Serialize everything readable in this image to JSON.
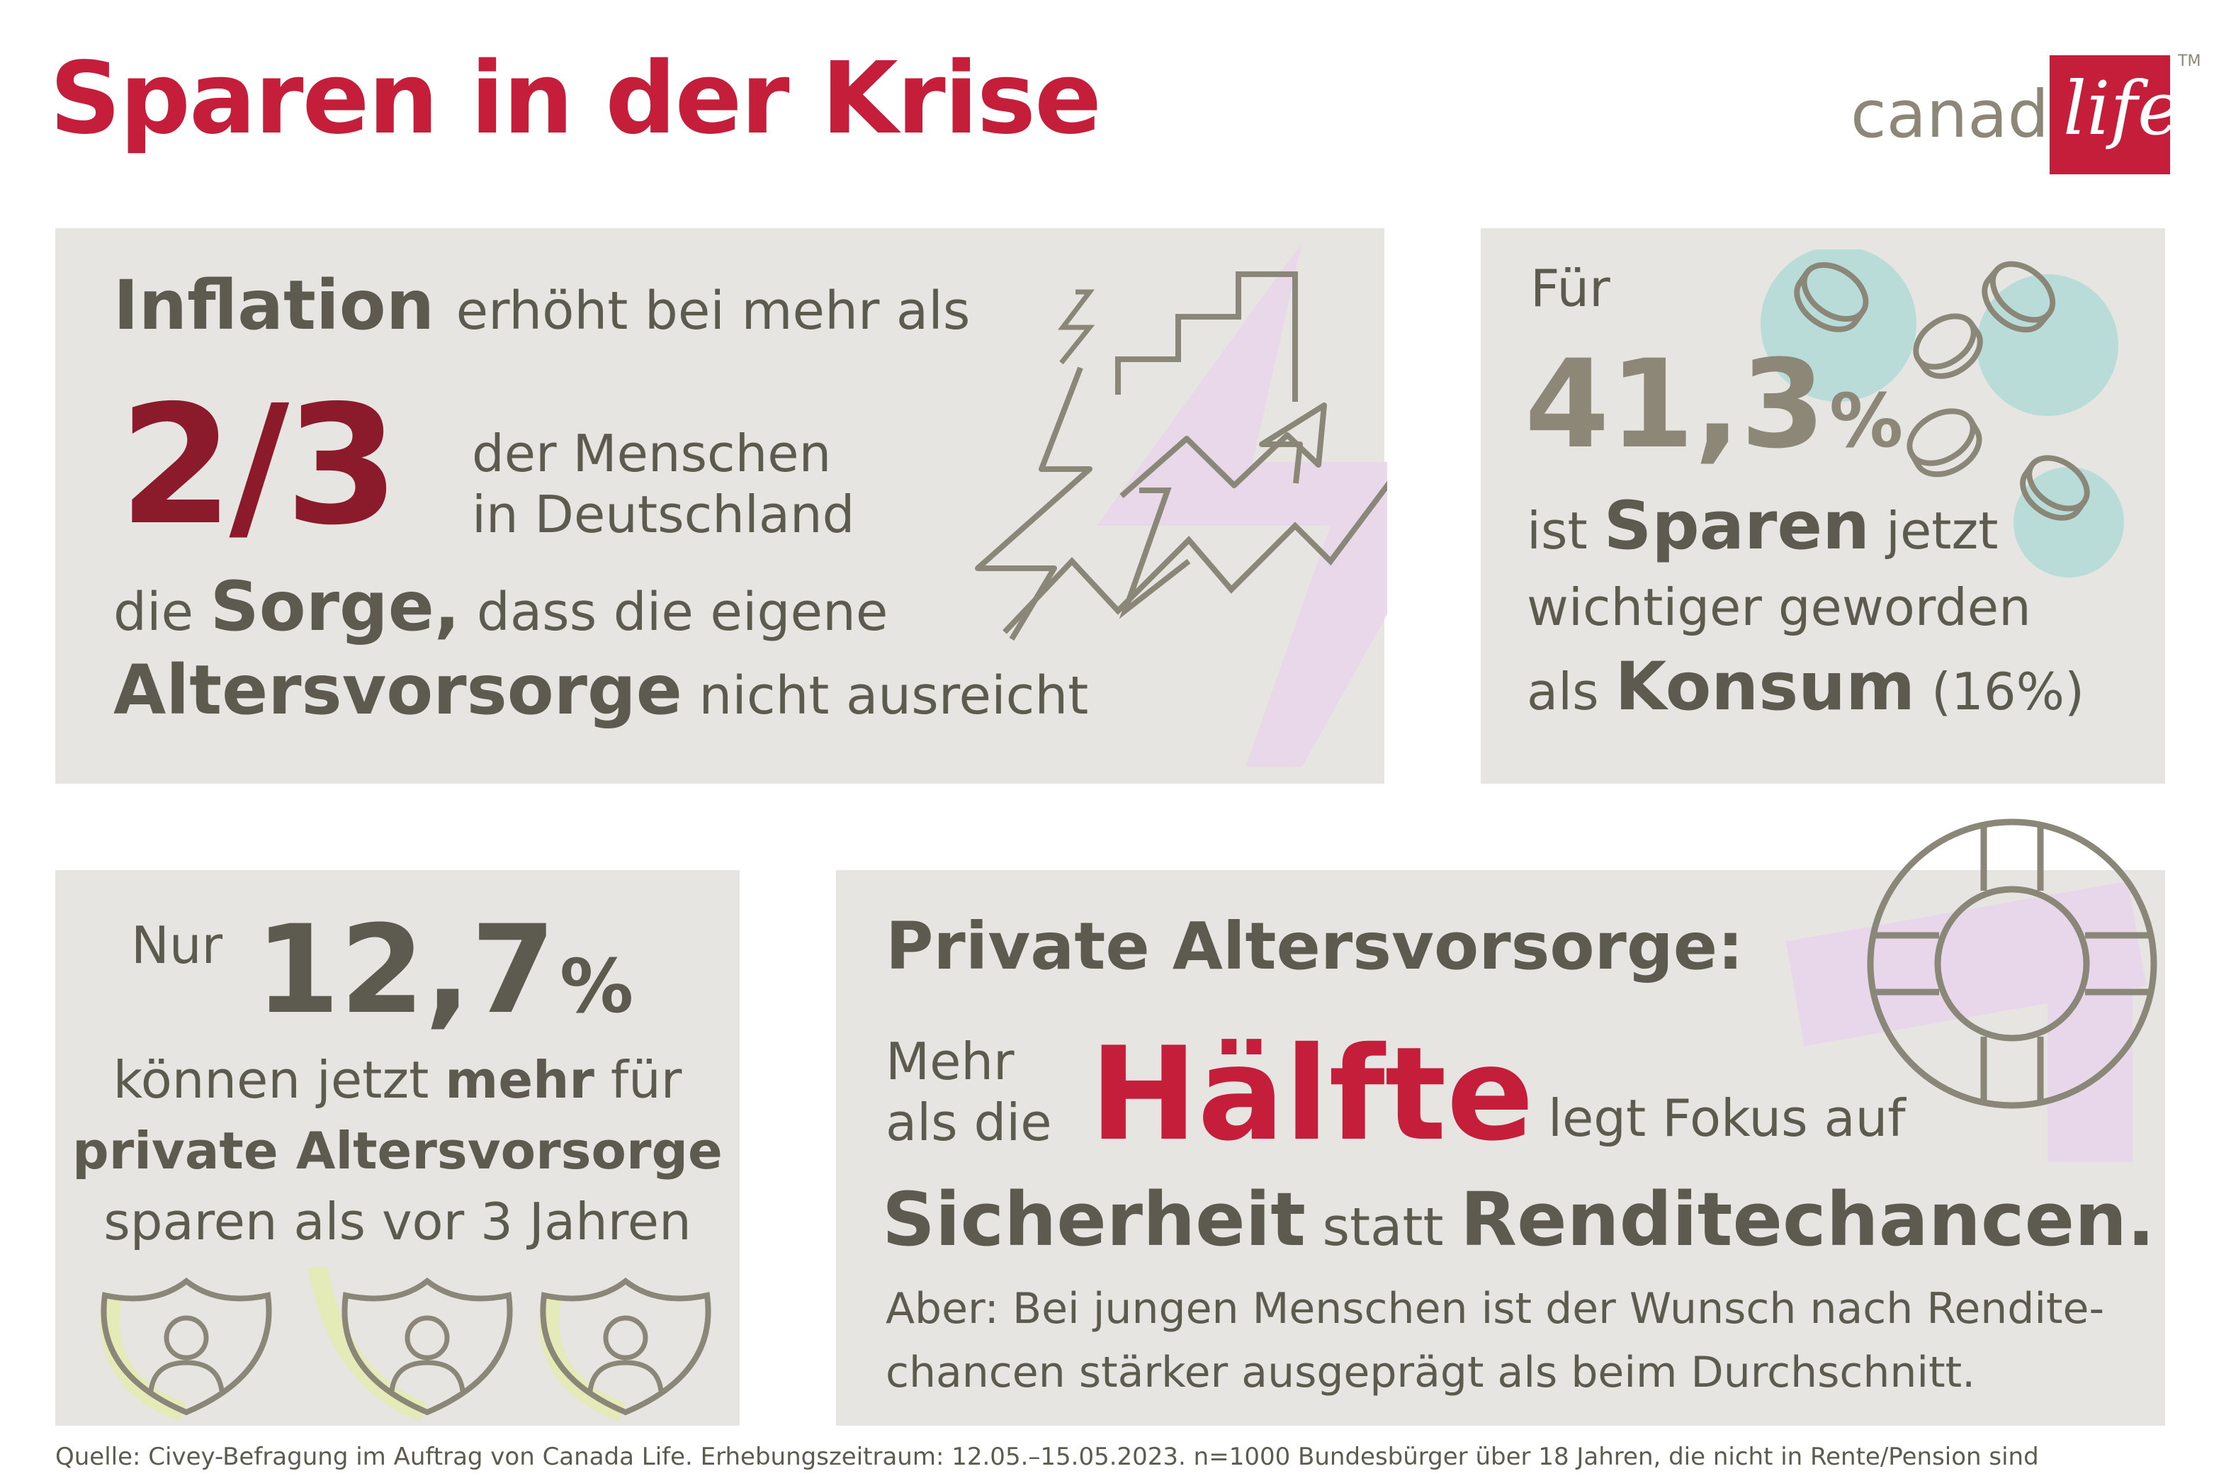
{
  "title": "Sparen in der Krise",
  "logo": {
    "brand": "canada",
    "word": "life",
    "tm": "TM"
  },
  "panel_inflation": {
    "w1": "Inflation",
    "w2": "erhöht bei mehr als",
    "fraction": "2/3",
    "l1": "der Menschen",
    "l2": "in Deutschland",
    "w3": "die",
    "w4": "Sorge,",
    "w5": "dass die eigene",
    "w6": "Altersvorsorge",
    "w7": "nicht ausreicht"
  },
  "panel_sparen": {
    "fuer": "Für",
    "percent": "41,3",
    "sign": "%",
    "a1": "ist",
    "a2": "Sparen",
    "a3": "jetzt",
    "b": "wichtiger geworden",
    "c1": "als",
    "c2": "Konsum",
    "c3": "(16%)"
  },
  "panel_nur": {
    "nur": "Nur",
    "percent": "12,7",
    "sign": "%",
    "l1a": "können jetzt",
    "l1b": "mehr",
    "l1c": "für",
    "l2": "private Altersvorsorge",
    "l3": "sparen als vor 3 Jahren"
  },
  "panel_private": {
    "heading": "Private Altersvorsorge:",
    "mehr": "Mehr",
    "als_die": "als die",
    "haelfte": "Hälfte",
    "legt": "legt Fokus auf",
    "sicherheit": "Sicherheit",
    "statt": "statt",
    "rendite": "Renditechancen.",
    "aber1": "Aber: Bei jungen Menschen ist der Wunsch nach Rendite-",
    "aber2": "chancen stärker ausgeprägt als beim Durchschnitt."
  },
  "footer": "Quelle: Civey-Befragung im Auftrag von Canada Life. Erhebungszeitraum: 12.05.–15.05.2023. n=1000 Bundesbürger über 18 Jahren, die nicht in Rente/Pension sind",
  "colors": {
    "red": "#c41e3a",
    "darkred": "#8b1a2b",
    "gray": "#5d5b4f",
    "panel": "#e7e5e1"
  }
}
